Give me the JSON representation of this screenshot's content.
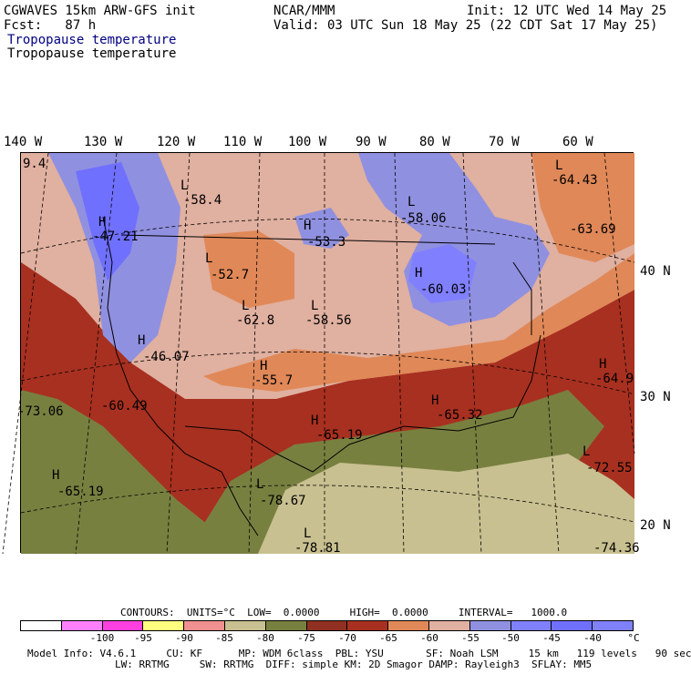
{
  "header": {
    "model_title": "CGWAVES 15km ARW-GFS init",
    "forecast": "Fcst:   87 h",
    "producer": "NCAR/MMM",
    "init": "Init: 12 UTC Wed 14 May 25",
    "valid": "Valid: 03 UTC Sun 18 May 25 (22 CDT Sat 17 May 25)",
    "field_title_1": "Tropopause temperature",
    "field_title_2": "Tropopause temperature"
  },
  "map": {
    "longitude_labels": [
      "140 W",
      "130 W",
      "120 W",
      "110 W",
      "100 W",
      "90 W",
      "80 W",
      "70 W",
      "60 W"
    ],
    "latitude_labels": [
      "40 N",
      "30 N",
      "20 N"
    ],
    "markers": [
      {
        "type": "L",
        "value": "-58.4"
      },
      {
        "type": "H",
        "value": "-47.21"
      },
      {
        "type": "H",
        "value": "-53.3"
      },
      {
        "type": "L",
        "value": "-58.06"
      },
      {
        "type": "L",
        "value": "-64.43"
      },
      {
        "type": "",
        "value": "-63.69"
      },
      {
        "type": "L",
        "value": "-52.7"
      },
      {
        "type": "L",
        "value": "-62.8"
      },
      {
        "type": "L",
        "value": "-58.56"
      },
      {
        "type": "H",
        "value": "-60.03"
      },
      {
        "type": "H",
        "value": "-46.07"
      },
      {
        "type": "H",
        "value": "-55.7"
      },
      {
        "type": "H",
        "value": "-64.9"
      },
      {
        "type": "",
        "value": "-73.06"
      },
      {
        "type": "",
        "value": "-60.49"
      },
      {
        "type": "H",
        "value": "-65.19"
      },
      {
        "type": "H",
        "value": "-65.32"
      },
      {
        "type": "L",
        "value": "-72.55"
      },
      {
        "type": "H",
        "value": "-65.19"
      },
      {
        "type": "L",
        "value": "-78.67"
      },
      {
        "type": "L",
        "value": "-78.81"
      },
      {
        "type": "",
        "value": "-74.36"
      },
      {
        "type": "",
        "value": "9.4"
      }
    ]
  },
  "contours": {
    "units_label": "CONTOURS:  UNITS=°C  LOW=  0.0000     HIGH=  0.0000     INTERVAL=   1000.0"
  },
  "colorbar": {
    "colors": [
      "#ffffff",
      "#ff80ff",
      "#ff40e0",
      "#ffff80",
      "#f09090",
      "#c8c090",
      "#788040",
      "#903020",
      "#a83020",
      "#e08858",
      "#e0b0a0",
      "#9090e0",
      "#8080ff",
      "#7070ff",
      "#8080f8"
    ],
    "labels": [
      "-100",
      "-95",
      "-90",
      "-85",
      "-80",
      "-75",
      "-70",
      "-65",
      "-60",
      "-55",
      "-50",
      "-45",
      "-40",
      "°C"
    ]
  },
  "footer": {
    "model_info": "Model Info: V4.6.1     CU: KF      MP: WDM 6class  PBL: YSU       SF: Noah LSM     15 km   119 levels   90 sec",
    "physics": "LW: RRTMG     SW: RRTMG  DIFF: simple KM: 2D Smagor DAMP: Rayleigh3  SFLAY: MM5"
  }
}
